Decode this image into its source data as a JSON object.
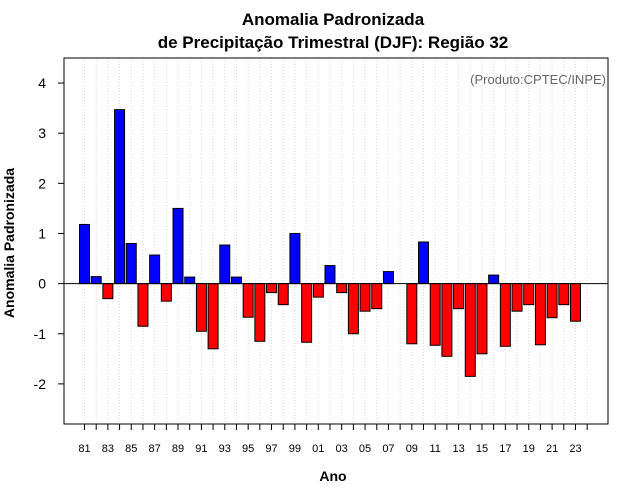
{
  "chart_data": {
    "type": "bar",
    "title_line1": "Anomalia Padronizada",
    "title_line2": "de Precipitação Trimestral (DJF): Região 32",
    "xlabel": "Ano",
    "ylabel": "Anomalia Padronizada",
    "credit": "(Produto:CPTEC/INPE)",
    "ylim": [
      -2.8,
      4.5
    ],
    "yticks": [
      -2,
      -1,
      0,
      1,
      2,
      3,
      4
    ],
    "grid": "vertical-dotted",
    "positive_color": "#0000ff",
    "negative_color": "#ff0000",
    "tick_labels": [
      "81",
      "83",
      "85",
      "87",
      "89",
      "91",
      "93",
      "95",
      "97",
      "99",
      "01",
      "03",
      "05",
      "07",
      "09",
      "11",
      "13",
      "15",
      "17",
      "19",
      "21",
      "23"
    ],
    "categories": [
      "81",
      "82",
      "83",
      "84",
      "85",
      "86",
      "87",
      "88",
      "89",
      "90",
      "91",
      "92",
      "93",
      "94",
      "95",
      "96",
      "97",
      "98",
      "99",
      "00",
      "01",
      "02",
      "03",
      "04",
      "05",
      "06",
      "07",
      "08",
      "09",
      "10",
      "11",
      "12",
      "13",
      "14",
      "15",
      "16",
      "17",
      "18",
      "19",
      "20",
      "21",
      "22",
      "23",
      "24"
    ],
    "values": [
      1.18,
      0.14,
      -0.3,
      3.47,
      0.8,
      -0.85,
      0.57,
      -0.35,
      1.5,
      0.13,
      -0.95,
      -1.3,
      0.77,
      0.13,
      -0.67,
      -1.15,
      -0.18,
      -0.42,
      1.0,
      -1.17,
      -0.27,
      0.36,
      -0.18,
      -1.0,
      -0.55,
      -0.5,
      0.24,
      0.0,
      -1.2,
      0.83,
      -1.23,
      -1.45,
      -0.5,
      -1.85,
      -1.4,
      0.17,
      -1.25,
      -0.55,
      -0.42,
      -1.22,
      -0.68,
      -0.42,
      -0.75,
      0.0
    ]
  }
}
